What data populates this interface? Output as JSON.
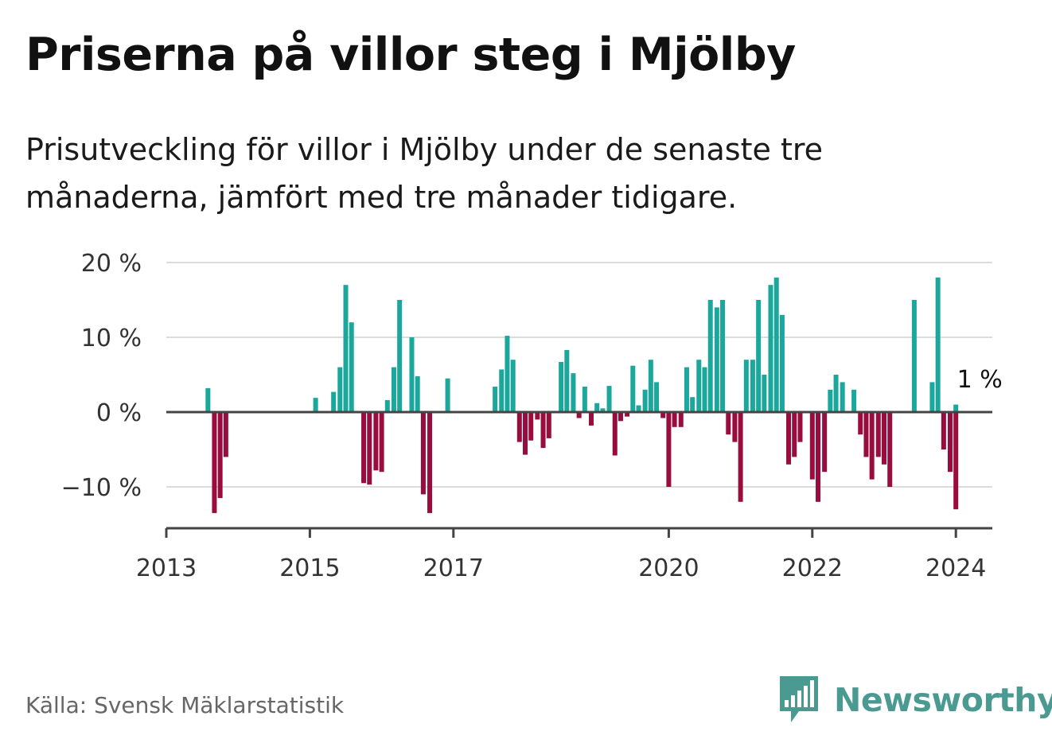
{
  "title": "Priserna på villor steg i Mjölby",
  "subtitle": "Prisutveckling för villor i Mjölby under de senaste tre månaderna, jämfört med tre månader tidigare.",
  "source": "Källa: Svensk Mäklarstatistik",
  "brand": "Newsworthy",
  "colors": {
    "positive": "#1ba79b",
    "negative": "#980d3d",
    "grid": "#dcdcdc",
    "axis": "#444444",
    "brand": "#4a9a92"
  },
  "chart_data": {
    "type": "bar",
    "title": "Priserna på villor steg i Mjölby",
    "xlabel": "",
    "ylabel": "",
    "ylim": [
      -15,
      20
    ],
    "xlim": [
      2013,
      2024.5
    ],
    "yticks": [
      20,
      10,
      0,
      -10
    ],
    "ytick_labels": [
      "20 %",
      "10 %",
      "0 %",
      "−10 %"
    ],
    "xticks": [
      2013,
      2015,
      2017,
      2020,
      2022,
      2024
    ],
    "xtick_labels": [
      "2013",
      "2015",
      "2017",
      "2020",
      "2022",
      "2024"
    ],
    "annotation": {
      "text": "1 %",
      "x": 2024.0,
      "y": 1
    },
    "series": [
      {
        "name": "Prisutveckling",
        "points": [
          {
            "x": 2013.58,
            "y": 3.2
          },
          {
            "x": 2013.67,
            "y": -13.5
          },
          {
            "x": 2013.75,
            "y": -11.5
          },
          {
            "x": 2013.83,
            "y": -6
          },
          {
            "x": 2015.08,
            "y": 1.9
          },
          {
            "x": 2015.33,
            "y": 2.7
          },
          {
            "x": 2015.42,
            "y": 6
          },
          {
            "x": 2015.5,
            "y": 17
          },
          {
            "x": 2015.58,
            "y": 12
          },
          {
            "x": 2015.75,
            "y": -9.5
          },
          {
            "x": 2015.83,
            "y": -9.7
          },
          {
            "x": 2015.92,
            "y": -7.8
          },
          {
            "x": 2016.0,
            "y": -8
          },
          {
            "x": 2016.08,
            "y": 1.6
          },
          {
            "x": 2016.17,
            "y": 6
          },
          {
            "x": 2016.25,
            "y": 15
          },
          {
            "x": 2016.42,
            "y": 10
          },
          {
            "x": 2016.5,
            "y": 4.8
          },
          {
            "x": 2016.58,
            "y": -11
          },
          {
            "x": 2016.67,
            "y": -13.5
          },
          {
            "x": 2016.92,
            "y": 4.5
          },
          {
            "x": 2017.58,
            "y": 3.4
          },
          {
            "x": 2017.67,
            "y": 5.7
          },
          {
            "x": 2017.75,
            "y": 10.2
          },
          {
            "x": 2017.83,
            "y": 7
          },
          {
            "x": 2017.92,
            "y": -4
          },
          {
            "x": 2018.0,
            "y": -5.7
          },
          {
            "x": 2018.08,
            "y": -3.8
          },
          {
            "x": 2018.17,
            "y": -1
          },
          {
            "x": 2018.25,
            "y": -4.8
          },
          {
            "x": 2018.33,
            "y": -3.5
          },
          {
            "x": 2018.5,
            "y": 6.7
          },
          {
            "x": 2018.58,
            "y": 8.3
          },
          {
            "x": 2018.67,
            "y": 5.2
          },
          {
            "x": 2018.75,
            "y": -0.8
          },
          {
            "x": 2018.83,
            "y": 3.4
          },
          {
            "x": 2018.92,
            "y": -1.8
          },
          {
            "x": 2019.0,
            "y": 1.2
          },
          {
            "x": 2019.08,
            "y": 0.5
          },
          {
            "x": 2019.17,
            "y": 3.5
          },
          {
            "x": 2019.25,
            "y": -5.8
          },
          {
            "x": 2019.33,
            "y": -1.2
          },
          {
            "x": 2019.42,
            "y": -0.6
          },
          {
            "x": 2019.5,
            "y": 6.2
          },
          {
            "x": 2019.58,
            "y": 0.9
          },
          {
            "x": 2019.67,
            "y": 3
          },
          {
            "x": 2019.75,
            "y": 7
          },
          {
            "x": 2019.83,
            "y": 4
          },
          {
            "x": 2019.92,
            "y": -0.8
          },
          {
            "x": 2020.0,
            "y": -10
          },
          {
            "x": 2020.08,
            "y": -2
          },
          {
            "x": 2020.17,
            "y": -2
          },
          {
            "x": 2020.25,
            "y": 6
          },
          {
            "x": 2020.33,
            "y": 2
          },
          {
            "x": 2020.42,
            "y": 7
          },
          {
            "x": 2020.5,
            "y": 6
          },
          {
            "x": 2020.58,
            "y": 15
          },
          {
            "x": 2020.67,
            "y": 14
          },
          {
            "x": 2020.75,
            "y": 15
          },
          {
            "x": 2020.83,
            "y": -3
          },
          {
            "x": 2020.92,
            "y": -4
          },
          {
            "x": 2021.0,
            "y": -12
          },
          {
            "x": 2021.08,
            "y": 7
          },
          {
            "x": 2021.17,
            "y": 7
          },
          {
            "x": 2021.25,
            "y": 15
          },
          {
            "x": 2021.33,
            "y": 5
          },
          {
            "x": 2021.42,
            "y": 17
          },
          {
            "x": 2021.5,
            "y": 18
          },
          {
            "x": 2021.58,
            "y": 13
          },
          {
            "x": 2021.67,
            "y": -7
          },
          {
            "x": 2021.75,
            "y": -6
          },
          {
            "x": 2021.83,
            "y": -4
          },
          {
            "x": 2022.0,
            "y": -9
          },
          {
            "x": 2022.08,
            "y": -12
          },
          {
            "x": 2022.17,
            "y": -8
          },
          {
            "x": 2022.25,
            "y": 3
          },
          {
            "x": 2022.33,
            "y": 5
          },
          {
            "x": 2022.42,
            "y": 4
          },
          {
            "x": 2022.58,
            "y": 3
          },
          {
            "x": 2022.67,
            "y": -3
          },
          {
            "x": 2022.75,
            "y": -6
          },
          {
            "x": 2022.83,
            "y": -9
          },
          {
            "x": 2022.92,
            "y": -6
          },
          {
            "x": 2023.0,
            "y": -7
          },
          {
            "x": 2023.08,
            "y": -10
          },
          {
            "x": 2023.42,
            "y": 15
          },
          {
            "x": 2023.67,
            "y": 4
          },
          {
            "x": 2023.75,
            "y": 18
          },
          {
            "x": 2023.83,
            "y": -5
          },
          {
            "x": 2023.92,
            "y": -8
          },
          {
            "x": 2024.0,
            "y": -13
          },
          {
            "x": 2024.0,
            "y": 1
          }
        ]
      }
    ]
  }
}
